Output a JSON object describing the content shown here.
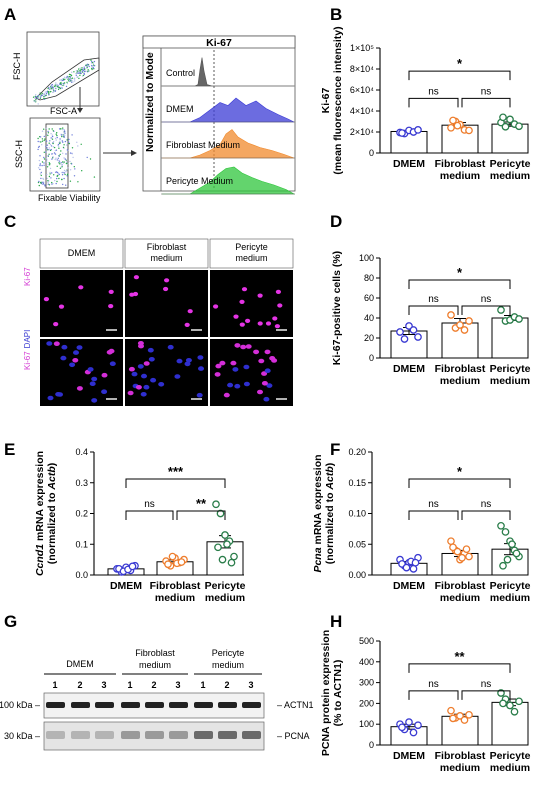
{
  "panels": {
    "A": {
      "letter": "A",
      "gating": {
        "ylabel1": "FSC-H",
        "xlabel1": "FSC-A",
        "ylabel2": "SSC-H",
        "xlabel2": "Fixable Viability"
      },
      "histogram": {
        "title": "Ki-67",
        "ylabel": "Normalized to Mode",
        "rows": [
          {
            "label": "Control",
            "color": "#555555"
          },
          {
            "label": "DMEM",
            "color": "#3b3bd6"
          },
          {
            "label": "Fibroblast Medium",
            "color": "#f08a2c"
          },
          {
            "label": "Pericyte Medium",
            "color": "#2fc63c"
          }
        ]
      }
    },
    "C": {
      "letter": "C",
      "columns": [
        "DMEM",
        "Fibroblast\nmedium",
        "Pericyte\nmedium"
      ],
      "row1_label": "Ki-67",
      "row2_label_a": "Ki-67",
      "row2_label_b": "DAPI"
    },
    "G": {
      "letter": "G",
      "groups": [
        "DMEM",
        "Fibroblast\nmedium",
        "Pericyte\nmedium"
      ],
      "lanes": [
        "1",
        "2",
        "3",
        "1",
        "2",
        "3",
        "1",
        "2",
        "3"
      ],
      "band1": {
        "kda": "100 kDa",
        "name": "ACTN1"
      },
      "band2": {
        "kda": "30 kDa",
        "name": "PCNA"
      }
    }
  },
  "chart_data": [
    {
      "id": "B",
      "type": "bar",
      "letter": "B",
      "categories": [
        "DMEM",
        "Fibroblast\nmedium",
        "Pericyte\nmedium"
      ],
      "means": [
        20500,
        26500,
        27500
      ],
      "sem": [
        1000,
        2500,
        2000
      ],
      "points": [
        [
          19500,
          18500,
          21500,
          20000,
          22000,
          19000
        ],
        [
          24000,
          30000,
          27000,
          22000,
          21500,
          31000,
          26000
        ],
        [
          29000,
          25000,
          32000,
          27500,
          25500,
          34000
        ]
      ],
      "colors": [
        "#3a3ad2",
        "#ee7d2d",
        "#2a7d4a"
      ],
      "ylabel": [
        "Ki-67",
        "(mean fluorescence intensity)"
      ],
      "ylim": [
        0,
        100000
      ],
      "yticks": [
        0,
        20000,
        40000,
        60000,
        80000,
        100000
      ],
      "ytick_labels": [
        "0",
        "2×10⁴",
        "4×10⁴",
        "6×10⁴",
        "8×10⁴",
        "1×10⁵"
      ],
      "comparisons": [
        {
          "from": 0,
          "to": 2,
          "label": "*",
          "level": 2
        },
        {
          "from": 0,
          "to": 1,
          "label": "ns",
          "level": 1
        },
        {
          "from": 1,
          "to": 2,
          "label": "ns",
          "level": 1
        }
      ]
    },
    {
      "id": "D",
      "type": "bar",
      "letter": "D",
      "categories": [
        "DMEM",
        "Fibroblast\nmedium",
        "Pericyte\nmedium"
      ],
      "means": [
        27,
        35,
        40
      ],
      "sem": [
        3.5,
        4.5,
        2.5
      ],
      "points": [
        [
          26,
          19,
          32,
          28,
          21
        ],
        [
          43,
          30,
          33,
          28,
          37
        ],
        [
          48,
          37,
          38,
          41,
          39
        ]
      ],
      "colors": [
        "#3a3ad2",
        "#ee7d2d",
        "#2a7d4a"
      ],
      "ylabel": [
        "Ki-67-positive cells (%)"
      ],
      "ylim": [
        0,
        100
      ],
      "yticks": [
        0,
        20,
        40,
        60,
        80,
        100
      ],
      "ytick_labels": [
        "0",
        "20",
        "40",
        "60",
        "80",
        "100"
      ],
      "comparisons": [
        {
          "from": 0,
          "to": 2,
          "label": "*",
          "level": 2
        },
        {
          "from": 0,
          "to": 1,
          "label": "ns",
          "level": 1
        },
        {
          "from": 1,
          "to": 2,
          "label": "ns",
          "level": 1
        }
      ]
    },
    {
      "id": "E",
      "type": "bar",
      "letter": "E",
      "categories": [
        "DMEM",
        "Fibroblast\nmedium",
        "Pericyte\nmedium"
      ],
      "means": [
        0.02,
        0.043,
        0.108
      ],
      "sem": [
        0.004,
        0.006,
        0.02
      ],
      "points": [
        [
          0.02,
          0.01,
          0.025,
          0.015,
          0.03,
          0.02,
          0.012,
          0.018,
          0.028
        ],
        [
          0.045,
          0.03,
          0.055,
          0.04,
          0.05,
          0.035,
          0.06,
          0.038,
          0.042
        ],
        [
          0.23,
          0.2,
          0.13,
          0.11,
          0.06,
          0.09,
          0.05,
          0.1,
          0.04
        ]
      ],
      "colors": [
        "#3a3ad2",
        "#ee7d2d",
        "#2a7d4a"
      ],
      "ylabel": [
        "Ccnd1 mRNA expression",
        "(normalized to Actb)"
      ],
      "ylim": [
        0,
        0.4
      ],
      "yticks": [
        0,
        0.1,
        0.2,
        0.3,
        0.4
      ],
      "ytick_labels": [
        "0.0",
        "0.1",
        "0.2",
        "0.3",
        "0.4"
      ],
      "comparisons": [
        {
          "from": 0,
          "to": 2,
          "label": "***",
          "level": 2
        },
        {
          "from": 0,
          "to": 1,
          "label": "ns",
          "level": 1
        },
        {
          "from": 1,
          "to": 2,
          "label": "**",
          "level": 1
        }
      ]
    },
    {
      "id": "F",
      "type": "bar",
      "letter": "F",
      "categories": [
        "DMEM",
        "Fibroblast\nmedium",
        "Pericyte\nmedium"
      ],
      "means": [
        0.019,
        0.035,
        0.042
      ],
      "sem": [
        0.003,
        0.005,
        0.009
      ],
      "points": [
        [
          0.025,
          0.015,
          0.02,
          0.01,
          0.028,
          0.018,
          0.012,
          0.022,
          0.02
        ],
        [
          0.055,
          0.04,
          0.025,
          0.035,
          0.03,
          0.045,
          0.038,
          0.028,
          0.042
        ],
        [
          0.08,
          0.07,
          0.055,
          0.04,
          0.03,
          0.015,
          0.025,
          0.05,
          0.035
        ]
      ],
      "colors": [
        "#3a3ad2",
        "#ee7d2d",
        "#2a7d4a"
      ],
      "ylabel": [
        "Pcna mRNA expression",
        "(normalized to Actb)"
      ],
      "ylim": [
        0,
        0.2
      ],
      "yticks": [
        0,
        0.05,
        0.1,
        0.15,
        0.2
      ],
      "ytick_labels": [
        "0.00",
        "0.05",
        "0.10",
        "0.15",
        "0.20"
      ],
      "comparisons": [
        {
          "from": 0,
          "to": 2,
          "label": "*",
          "level": 2
        },
        {
          "from": 0,
          "to": 1,
          "label": "ns",
          "level": 1
        },
        {
          "from": 1,
          "to": 2,
          "label": "ns",
          "level": 1
        }
      ]
    },
    {
      "id": "H",
      "type": "bar",
      "letter": "H",
      "categories": [
        "DMEM",
        "Fibroblast\nmedium",
        "Pericyte\nmedium"
      ],
      "means": [
        88,
        138,
        205
      ],
      "sem": [
        12,
        10,
        16
      ],
      "points": [
        [
          100,
          75,
          110,
          60,
          95,
          85
        ],
        [
          165,
          130,
          140,
          120,
          145,
          128
        ],
        [
          250,
          220,
          190,
          160,
          210,
          200
        ]
      ],
      "colors": [
        "#3a3ad2",
        "#ee7d2d",
        "#2a7d4a"
      ],
      "ylabel": [
        "PCNA protein expression",
        "(% to ACTN1)"
      ],
      "ylim": [
        0,
        500
      ],
      "yticks": [
        0,
        100,
        200,
        300,
        400,
        500
      ],
      "ytick_labels": [
        "0",
        "100",
        "200",
        "300",
        "400",
        "500"
      ],
      "comparisons": [
        {
          "from": 0,
          "to": 2,
          "label": "**",
          "level": 2
        },
        {
          "from": 0,
          "to": 1,
          "label": "ns",
          "level": 1
        },
        {
          "from": 1,
          "to": 2,
          "label": "ns",
          "level": 1
        }
      ]
    }
  ]
}
